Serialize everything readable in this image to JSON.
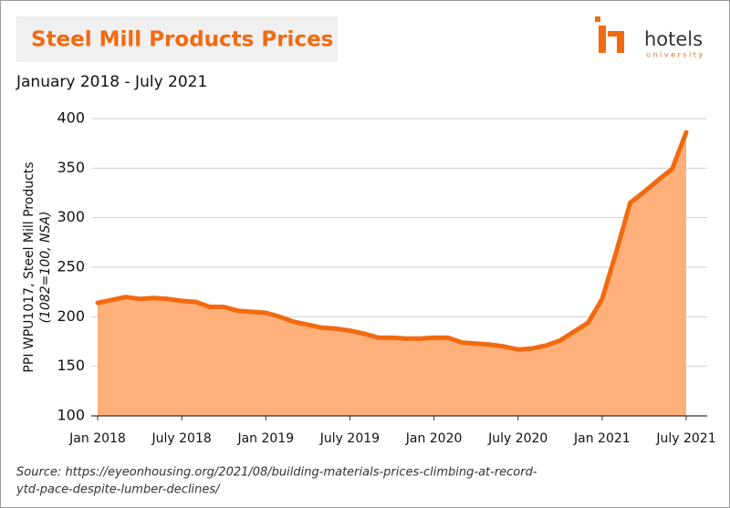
{
  "chart_data": {
    "type": "area",
    "title": "Steel Mill Products Prices",
    "subtitle": "January 2018 - July 2021",
    "y_label": "PPI WPU1017, Steel Mill Products",
    "y_label_2": "(1082=100, NSA)",
    "source": "Source: https://eyeonhousing.org/2021/08/building-materials-prices-climbing-at-record-",
    "source_2": "ytd-pace-despite-lumber-declines/",
    "logo": {
      "brand": "hotels",
      "sub": "university"
    },
    "categories": [
      "Jan 2018",
      null,
      null,
      null,
      null,
      null,
      "July 2018",
      null,
      null,
      null,
      null,
      null,
      "Jan 2019",
      null,
      null,
      null,
      null,
      null,
      "July 2019",
      null,
      null,
      null,
      null,
      null,
      "Jan 2020",
      null,
      null,
      null,
      null,
      null,
      "July 2020",
      null,
      null,
      null,
      null,
      null,
      "Jan 2021",
      null,
      null,
      null,
      null,
      null,
      "July 2021"
    ],
    "values": [
      214,
      217,
      220,
      218,
      219,
      218,
      216,
      215,
      210,
      210,
      206,
      205,
      204,
      200,
      195,
      192,
      189,
      188,
      186,
      183,
      179,
      179,
      178,
      178,
      179,
      179,
      174,
      173,
      172,
      170,
      167,
      168,
      171,
      176,
      185,
      194,
      218,
      265,
      315,
      326,
      338,
      349,
      386
    ],
    "color": "#f26a10",
    "fill": "#ffb07a",
    "ylim": [
      100,
      400
    ],
    "yticks": [
      100,
      150,
      200,
      250,
      300,
      350,
      400
    ],
    "grid": true
  }
}
